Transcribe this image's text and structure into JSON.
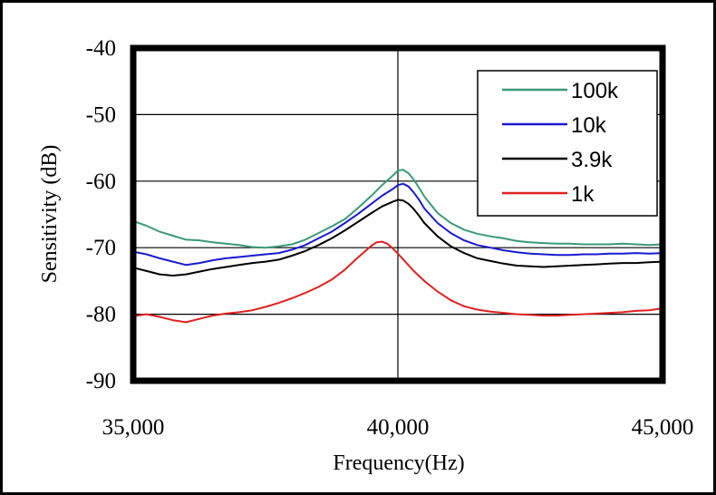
{
  "chart_data": {
    "type": "line",
    "xlabel": "Frequency(Hz)",
    "ylabel": "Sensitivity  (dB)",
    "xlim": [
      35000,
      45000
    ],
    "ylim": [
      -90,
      -40
    ],
    "x_ticks": [
      35000,
      40000,
      45000
    ],
    "x_tick_labels": [
      "35,000",
      "40,000",
      "45,000"
    ],
    "y_ticks": [
      -90,
      -80,
      -70,
      -60,
      -50,
      -40
    ],
    "y_tick_labels": [
      "-90",
      "-80",
      "-70",
      "-60",
      "-50",
      "-40"
    ],
    "grid": "horizontal major lines and vertical line at 40,000",
    "legend_position": "top-right",
    "series": [
      {
        "name": "100k",
        "color": "#3a9a78",
        "x": [
          35000,
          35250,
          35500,
          35750,
          36000,
          36250,
          36500,
          36750,
          37000,
          37250,
          37500,
          37750,
          38000,
          38250,
          38500,
          38750,
          39000,
          39250,
          39500,
          39700,
          39900,
          40000,
          40100,
          40200,
          40300,
          40400,
          40500,
          40750,
          41000,
          41250,
          41500,
          41750,
          42000,
          42250,
          42500,
          42750,
          43000,
          43250,
          43500,
          43750,
          44000,
          44250,
          44500,
          44750,
          45000
        ],
        "y": [
          -66,
          -66.7,
          -67.6,
          -68.2,
          -68.8,
          -68.9,
          -69.2,
          -69.4,
          -69.6,
          -69.9,
          -70.0,
          -69.8,
          -69.5,
          -68.8,
          -67.8,
          -66.8,
          -65.7,
          -64.0,
          -62.2,
          -60.6,
          -59.2,
          -58.4,
          -58.3,
          -58.8,
          -59.8,
          -61.0,
          -62.3,
          -64.8,
          -66.3,
          -67.3,
          -67.9,
          -68.3,
          -68.6,
          -69.0,
          -69.2,
          -69.3,
          -69.4,
          -69.4,
          -69.5,
          -69.5,
          -69.5,
          -69.4,
          -69.5,
          -69.6,
          -69.5
        ]
      },
      {
        "name": "10k",
        "color": "#1a1ad0",
        "x": [
          35000,
          35250,
          35500,
          35750,
          36000,
          36250,
          36500,
          36750,
          37000,
          37250,
          37500,
          37750,
          38000,
          38250,
          38500,
          38750,
          39000,
          39250,
          39500,
          39700,
          39900,
          40000,
          40100,
          40200,
          40300,
          40400,
          40500,
          40750,
          41000,
          41250,
          41500,
          41750,
          42000,
          42250,
          42500,
          42750,
          43000,
          43250,
          43500,
          43750,
          44000,
          44250,
          44500,
          44750,
          45000
        ],
        "y": [
          -70.6,
          -71.0,
          -71.6,
          -72.1,
          -72.6,
          -72.3,
          -71.9,
          -71.6,
          -71.4,
          -71.2,
          -71.0,
          -70.8,
          -70.3,
          -69.6,
          -68.6,
          -67.6,
          -66.3,
          -64.9,
          -63.4,
          -62.2,
          -61.2,
          -60.6,
          -60.4,
          -60.8,
          -61.7,
          -62.8,
          -64.1,
          -66.3,
          -67.8,
          -68.9,
          -69.6,
          -70.0,
          -70.4,
          -70.7,
          -70.9,
          -71.0,
          -71.1,
          -71.1,
          -71.0,
          -71.0,
          -70.9,
          -70.9,
          -70.8,
          -70.9,
          -70.8
        ]
      },
      {
        "name": "3.9k",
        "color": "#000000",
        "x": [
          35000,
          35250,
          35500,
          35750,
          36000,
          36250,
          36500,
          36750,
          37000,
          37250,
          37500,
          37750,
          38000,
          38250,
          38500,
          38750,
          39000,
          39250,
          39500,
          39700,
          39900,
          40000,
          40100,
          40200,
          40300,
          40400,
          40500,
          40750,
          41000,
          41250,
          41500,
          41750,
          42000,
          42250,
          42500,
          42750,
          43000,
          43250,
          43500,
          43750,
          44000,
          44250,
          44500,
          44750,
          45000
        ],
        "y": [
          -73.0,
          -73.5,
          -74.0,
          -74.2,
          -74.0,
          -73.6,
          -73.2,
          -72.9,
          -72.6,
          -72.3,
          -72.1,
          -71.8,
          -71.2,
          -70.5,
          -69.6,
          -68.6,
          -67.4,
          -66.1,
          -64.8,
          -63.8,
          -63.1,
          -62.8,
          -62.9,
          -63.4,
          -64.2,
          -65.2,
          -66.3,
          -68.3,
          -69.8,
          -70.8,
          -71.6,
          -72.0,
          -72.4,
          -72.7,
          -72.8,
          -72.9,
          -72.8,
          -72.7,
          -72.6,
          -72.5,
          -72.4,
          -72.3,
          -72.3,
          -72.2,
          -72.1
        ]
      },
      {
        "name": "1k",
        "color": "#e02020",
        "x": [
          35000,
          35250,
          35500,
          35750,
          36000,
          36250,
          36500,
          36750,
          37000,
          37250,
          37500,
          37750,
          38000,
          38250,
          38500,
          38750,
          39000,
          39200,
          39400,
          39500,
          39600,
          39700,
          39800,
          39900,
          40000,
          40150,
          40300,
          40500,
          40750,
          41000,
          41250,
          41500,
          41750,
          42000,
          42250,
          42500,
          42750,
          43000,
          43250,
          43500,
          43750,
          44000,
          44250,
          44500,
          44750,
          45000
        ],
        "y": [
          -80.3,
          -80.0,
          -80.4,
          -80.9,
          -81.2,
          -80.7,
          -80.2,
          -79.9,
          -79.7,
          -79.4,
          -78.9,
          -78.3,
          -77.6,
          -76.8,
          -75.9,
          -74.8,
          -73.3,
          -71.8,
          -70.4,
          -69.7,
          -69.2,
          -69.1,
          -69.4,
          -70.1,
          -70.9,
          -72.2,
          -73.5,
          -75.0,
          -76.6,
          -77.9,
          -78.8,
          -79.3,
          -79.6,
          -79.8,
          -80.0,
          -80.1,
          -80.2,
          -80.2,
          -80.1,
          -80.0,
          -79.9,
          -79.8,
          -79.7,
          -79.5,
          -79.4,
          -79.1
        ]
      }
    ]
  }
}
